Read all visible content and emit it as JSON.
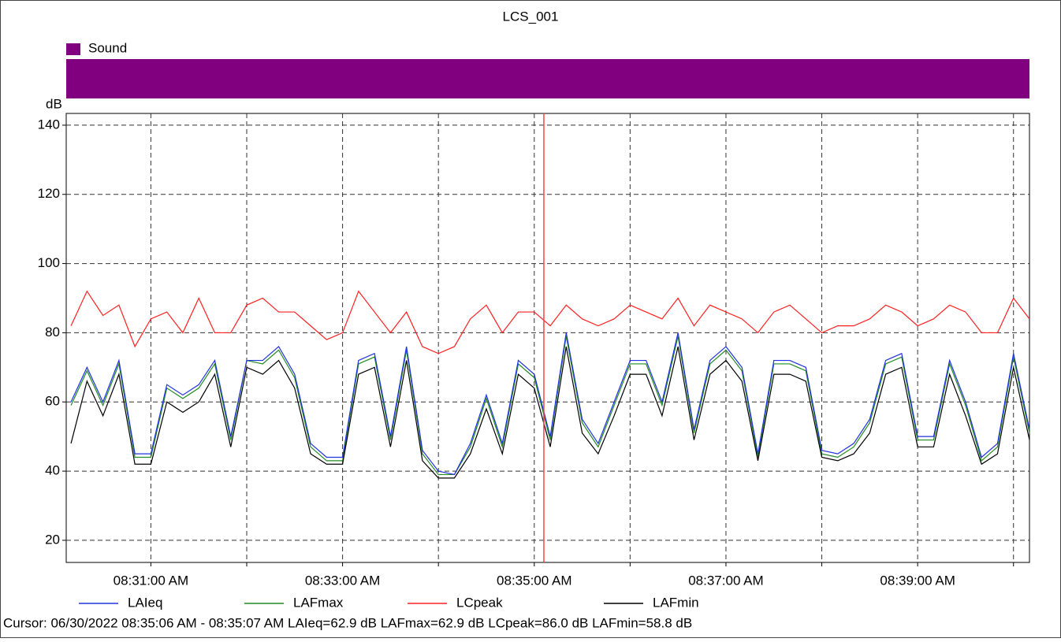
{
  "chart_data": {
    "type": "line",
    "title": "LCS_001",
    "y_label": "dB",
    "band": {
      "name": "Sound",
      "color": "#800080"
    },
    "x": [
      "08:30:10 AM",
      "08:30:20 AM",
      "08:30:30 AM",
      "08:30:40 AM",
      "08:30:50 AM",
      "08:31:00 AM",
      "08:31:10 AM",
      "08:31:20 AM",
      "08:31:30 AM",
      "08:31:40 AM",
      "08:31:50 AM",
      "08:32:00 AM",
      "08:32:10 AM",
      "08:32:20 AM",
      "08:32:30 AM",
      "08:32:40 AM",
      "08:32:50 AM",
      "08:33:00 AM",
      "08:33:10 AM",
      "08:33:20 AM",
      "08:33:30 AM",
      "08:33:40 AM",
      "08:33:50 AM",
      "08:34:00 AM",
      "08:34:10 AM",
      "08:34:20 AM",
      "08:34:30 AM",
      "08:34:40 AM",
      "08:34:50 AM",
      "08:35:00 AM",
      "08:35:10 AM",
      "08:35:20 AM",
      "08:35:30 AM",
      "08:35:40 AM",
      "08:35:50 AM",
      "08:36:00 AM",
      "08:36:10 AM",
      "08:36:20 AM",
      "08:36:30 AM",
      "08:36:40 AM",
      "08:36:50 AM",
      "08:37:00 AM",
      "08:37:10 AM",
      "08:37:20 AM",
      "08:37:30 AM",
      "08:37:40 AM",
      "08:37:50 AM",
      "08:38:00 AM",
      "08:38:10 AM",
      "08:38:20 AM",
      "08:38:30 AM",
      "08:38:40 AM",
      "08:38:50 AM",
      "08:39:00 AM",
      "08:39:10 AM",
      "08:39:20 AM",
      "08:39:30 AM",
      "08:39:40 AM",
      "08:39:50 AM",
      "08:40:00 AM",
      "08:40:10 AM"
    ],
    "series": [
      {
        "name": "LAIeq",
        "color": "#2233dd",
        "values": [
          60,
          70,
          60,
          72,
          45,
          45,
          65,
          62,
          65,
          72,
          50,
          72,
          72,
          76,
          68,
          48,
          44,
          44,
          72,
          74,
          50,
          76,
          46,
          40,
          39,
          48,
          62,
          48,
          72,
          68,
          50,
          80,
          55,
          48,
          60,
          72,
          72,
          60,
          80,
          52,
          72,
          76,
          70,
          45,
          72,
          72,
          70,
          46,
          45,
          48,
          55,
          72,
          74,
          50,
          50,
          72,
          60,
          44,
          48,
          74,
          52
        ]
      },
      {
        "name": "LAFmax",
        "color": "#228b22",
        "values": [
          59,
          69,
          59,
          71,
          44,
          44,
          64,
          61,
          64,
          71,
          49,
          72,
          71,
          75,
          67,
          47,
          43,
          43,
          71,
          73,
          49,
          75,
          45,
          39,
          39,
          47,
          61,
          47,
          71,
          67,
          49,
          79,
          54,
          47,
          59,
          71,
          71,
          59,
          79,
          51,
          71,
          75,
          69,
          44,
          71,
          71,
          69,
          45,
          44,
          47,
          54,
          71,
          73,
          49,
          49,
          71,
          59,
          43,
          47,
          73,
          51
        ]
      },
      {
        "name": "LCpeak",
        "color": "#ff2020",
        "values": [
          82,
          92,
          85,
          88,
          76,
          84,
          86,
          80,
          90,
          80,
          80,
          88,
          90,
          86,
          86,
          82,
          78,
          80,
          92,
          86,
          80,
          86,
          76,
          74,
          76,
          84,
          88,
          80,
          86,
          86,
          82,
          88,
          84,
          82,
          84,
          88,
          86,
          84,
          90,
          82,
          88,
          86,
          84,
          80,
          86,
          88,
          84,
          80,
          82,
          82,
          84,
          88,
          86,
          82,
          84,
          88,
          86,
          80,
          80,
          90,
          84
        ]
      },
      {
        "name": "LAFmin",
        "color": "#000000",
        "values": [
          48,
          66,
          56,
          68,
          42,
          42,
          60,
          57,
          60,
          68,
          47,
          70,
          68,
          72,
          64,
          45,
          42,
          42,
          68,
          70,
          47,
          72,
          43,
          38,
          38,
          45,
          58,
          45,
          68,
          64,
          47,
          76,
          51,
          45,
          56,
          68,
          68,
          56,
          76,
          49,
          68,
          72,
          66,
          43,
          68,
          68,
          66,
          44,
          43,
          45,
          51,
          68,
          70,
          47,
          47,
          68,
          56,
          42,
          45,
          70,
          49
        ]
      }
    ],
    "xlim": [
      "08:30:07 AM",
      "08:40:10 AM"
    ],
    "xticks": [
      "08:31:00 AM",
      "08:33:00 AM",
      "08:35:00 AM",
      "08:37:00 AM",
      "08:39:00 AM"
    ],
    "xgrid_ticks": [
      "08:32:00 AM",
      "08:34:00 AM",
      "08:36:00 AM",
      "08:38:00 AM",
      "08:40:00 AM"
    ],
    "ylim": [
      13.6,
      143.4
    ],
    "yticks": [
      20,
      40,
      60,
      80,
      100,
      120,
      140
    ],
    "grid": true,
    "cursor": {
      "x": "08:35:06 AM",
      "color": "#ff4040",
      "text": "Cursor: 06/30/2022 08:35:06 AM - 08:35:07 AM  LAIeq=62.9 dB  LAFmax=62.9 dB  LCpeak=86.0 dB  LAFmin=58.8 dB"
    }
  }
}
